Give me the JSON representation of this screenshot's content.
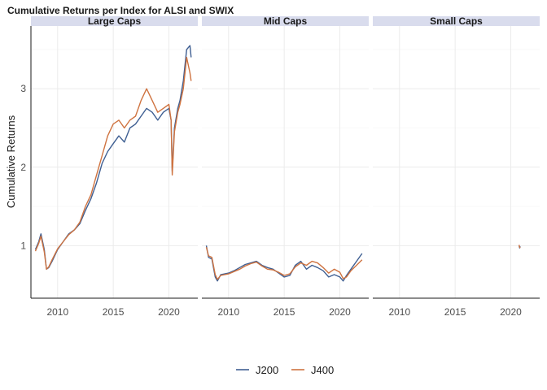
{
  "chart_data": {
    "type": "line",
    "title": "Cumulative Returns per Index for ALSI and SWIX",
    "xlabel": "",
    "ylabel": "Cumulative Returns",
    "xlim": [
      2007.6,
      2022.6
    ],
    "ylim": [
      0.33,
      3.8
    ],
    "x_ticks": [
      2010,
      2015,
      2020
    ],
    "y_ticks": [
      1,
      2,
      3
    ],
    "grid": true,
    "legend_position": "bottom",
    "colors": {
      "J200": "#3f5f92",
      "J400": "#cf7340",
      "strip_bg": "#d9dced",
      "grid": "#ebebeb",
      "axis": "#1a1a1a"
    },
    "facets": [
      {
        "label": "Large  Caps",
        "series": [
          {
            "name": "J200",
            "x": [
              2008.0,
              2008.3,
              2008.5,
              2008.8,
              2009.0,
              2009.2,
              2009.5,
              2010.0,
              2010.5,
              2011.0,
              2011.5,
              2012.0,
              2012.5,
              2013.0,
              2013.5,
              2014.0,
              2014.5,
              2015.0,
              2015.5,
              2016.0,
              2016.5,
              2017.0,
              2017.5,
              2018.0,
              2018.5,
              2019.0,
              2019.5,
              2020.0,
              2020.2,
              2020.3,
              2020.5,
              2020.8,
              2021.0,
              2021.3,
              2021.6,
              2021.9,
              2022.0
            ],
            "y": [
              0.95,
              1.05,
              1.15,
              0.95,
              0.7,
              0.72,
              0.8,
              0.95,
              1.05,
              1.15,
              1.2,
              1.28,
              1.45,
              1.6,
              1.8,
              2.05,
              2.2,
              2.3,
              2.4,
              2.32,
              2.5,
              2.55,
              2.65,
              2.75,
              2.7,
              2.6,
              2.7,
              2.75,
              2.6,
              1.95,
              2.5,
              2.75,
              2.85,
              3.1,
              3.5,
              3.55,
              3.4
            ]
          },
          {
            "name": "J400",
            "x": [
              2008.0,
              2008.3,
              2008.5,
              2008.8,
              2009.0,
              2009.2,
              2009.5,
              2010.0,
              2010.5,
              2011.0,
              2011.5,
              2012.0,
              2012.5,
              2013.0,
              2013.5,
              2014.0,
              2014.5,
              2015.0,
              2015.5,
              2016.0,
              2016.5,
              2017.0,
              2017.5,
              2018.0,
              2018.5,
              2019.0,
              2019.5,
              2020.0,
              2020.2,
              2020.3,
              2020.5,
              2020.8,
              2021.0,
              2021.3,
              2021.6,
              2021.9,
              2022.0
            ],
            "y": [
              0.93,
              1.03,
              1.12,
              0.92,
              0.7,
              0.73,
              0.82,
              0.96,
              1.05,
              1.14,
              1.2,
              1.3,
              1.5,
              1.65,
              1.9,
              2.15,
              2.4,
              2.55,
              2.6,
              2.5,
              2.6,
              2.65,
              2.85,
              3.0,
              2.85,
              2.7,
              2.75,
              2.8,
              2.6,
              1.9,
              2.45,
              2.7,
              2.8,
              3.0,
              3.4,
              3.2,
              3.1
            ]
          }
        ]
      },
      {
        "label": "Mid  Caps",
        "series": [
          {
            "name": "J200",
            "x": [
              2008.0,
              2008.2,
              2008.5,
              2008.8,
              2009.0,
              2009.3,
              2010.0,
              2010.5,
              2011.0,
              2011.5,
              2012.0,
              2012.5,
              2013.0,
              2013.5,
              2014.0,
              2014.5,
              2015.0,
              2015.5,
              2016.0,
              2016.5,
              2017.0,
              2017.5,
              2018.0,
              2018.5,
              2019.0,
              2019.5,
              2020.0,
              2020.3,
              2020.6,
              2021.0,
              2021.5,
              2022.0
            ],
            "y": [
              1.0,
              0.85,
              0.83,
              0.6,
              0.55,
              0.63,
              0.65,
              0.68,
              0.72,
              0.76,
              0.78,
              0.8,
              0.75,
              0.72,
              0.7,
              0.65,
              0.6,
              0.62,
              0.75,
              0.8,
              0.7,
              0.75,
              0.72,
              0.68,
              0.6,
              0.63,
              0.6,
              0.55,
              0.62,
              0.7,
              0.8,
              0.9
            ]
          },
          {
            "name": "J400",
            "x": [
              2008.0,
              2008.2,
              2008.5,
              2008.8,
              2009.0,
              2009.3,
              2010.0,
              2010.5,
              2011.0,
              2011.5,
              2012.0,
              2012.5,
              2013.0,
              2013.5,
              2014.0,
              2014.5,
              2015.0,
              2015.5,
              2016.0,
              2016.5,
              2017.0,
              2017.5,
              2018.0,
              2018.5,
              2019.0,
              2019.5,
              2020.0,
              2020.3,
              2020.6,
              2021.0,
              2021.5,
              2022.0
            ],
            "y": [
              0.98,
              0.87,
              0.85,
              0.63,
              0.57,
              0.62,
              0.64,
              0.67,
              0.7,
              0.74,
              0.77,
              0.79,
              0.74,
              0.7,
              0.69,
              0.66,
              0.62,
              0.64,
              0.73,
              0.78,
              0.75,
              0.8,
              0.78,
              0.72,
              0.65,
              0.7,
              0.66,
              0.58,
              0.6,
              0.68,
              0.75,
              0.82
            ]
          }
        ]
      },
      {
        "label": "Small  Caps",
        "series": [
          {
            "name": "J200",
            "x": [
              2020.75,
              2020.8,
              2020.85
            ],
            "y": [
              1.0,
              0.97,
              0.99
            ]
          },
          {
            "name": "J400",
            "x": [
              2020.75,
              2020.8,
              2020.85
            ],
            "y": [
              1.01,
              0.98,
              0.97
            ]
          }
        ]
      }
    ],
    "legend": [
      {
        "name": "J200",
        "color": "#3f5f92"
      },
      {
        "name": "J400",
        "color": "#cf7340"
      }
    ]
  }
}
